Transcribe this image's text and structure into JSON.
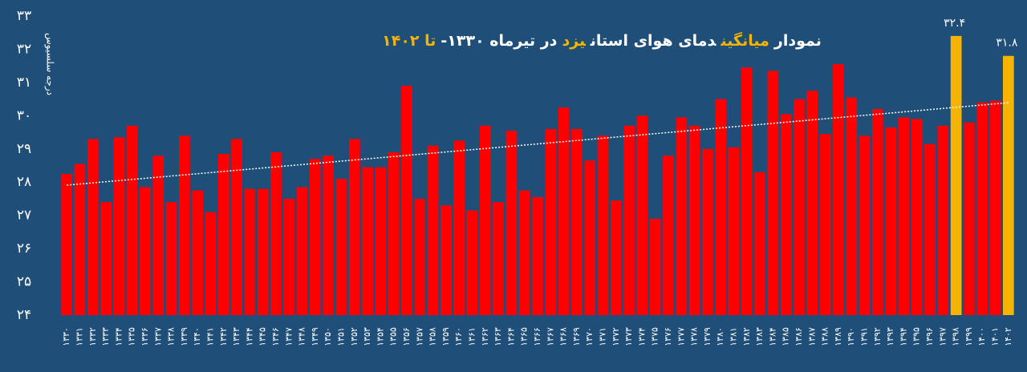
{
  "chart_data": {
    "type": "bar",
    "title_parts": [
      {
        "text": "نمودار",
        "color": "#ffffff"
      },
      {
        "text": "میانگین",
        "color": "#f5b400"
      },
      {
        "text": "دمای هوای استان",
        "color": "#ffffff"
      },
      {
        "text": "یزد",
        "color": "#f5b400"
      },
      {
        "text": "در تیرماه ۱۳۳۰-",
        "color": "#ffffff"
      },
      {
        "text": "تا ۱۴۰۲",
        "color": "#f5b400"
      }
    ],
    "y_label": "درجه سلسیوس",
    "categories": [
      "۱۳۳۰",
      "۱۳۳۱",
      "۱۳۳۲",
      "۱۳۳۳",
      "۱۳۳۴",
      "۱۳۳۵",
      "۱۳۳۶",
      "۱۳۳۷",
      "۱۳۳۸",
      "۱۳۳۹",
      "۱۳۴۰",
      "۱۳۴۱",
      "۱۳۴۲",
      "۱۳۴۳",
      "۱۳۴۴",
      "۱۳۴۵",
      "۱۳۴۶",
      "۱۳۴۷",
      "۱۳۴۸",
      "۱۳۴۹",
      "۱۳۵۰",
      "۱۳۵۱",
      "۱۳۵۲",
      "۱۳۵۳",
      "۱۳۵۴",
      "۱۳۵۵",
      "۱۳۵۶",
      "۱۳۵۷",
      "۱۳۵۸",
      "۱۳۵۹",
      "۱۳۶۰",
      "۱۳۶۱",
      "۱۳۶۲",
      "۱۳۶۳",
      "۱۳۶۴",
      "۱۳۶۵",
      "۱۳۶۶",
      "۱۳۶۷",
      "۱۳۶۸",
      "۱۳۶۹",
      "۱۳۷۰",
      "۱۳۷۱",
      "۱۳۷۲",
      "۱۳۷۳",
      "۱۳۷۴",
      "۱۳۷۵",
      "۱۳۷۶",
      "۱۳۷۷",
      "۱۳۷۸",
      "۱۳۷۹",
      "۱۳۸۰",
      "۱۳۸۱",
      "۱۳۸۲",
      "۱۳۸۳",
      "۱۳۸۴",
      "۱۳۸۵",
      "۱۳۸۶",
      "۱۳۸۷",
      "۱۳۸۸",
      "۱۳۸۹",
      "۱۳۹۰",
      "۱۳۹۱",
      "۱۳۹۲",
      "۱۳۹۳",
      "۱۳۹۴",
      "۱۳۹۵",
      "۱۳۹۶",
      "۱۳۹۷",
      "۱۳۹۸",
      "۱۳۹۹",
      "۱۴۰۰",
      "۱۴۰۱",
      "۱۴۰۲"
    ],
    "values": [
      28.25,
      28.55,
      29.3,
      27.4,
      29.35,
      29.7,
      27.85,
      28.8,
      27.4,
      29.4,
      27.75,
      27.1,
      28.85,
      29.3,
      27.8,
      27.8,
      28.9,
      27.5,
      27.85,
      28.7,
      28.8,
      28.1,
      29.3,
      28.45,
      28.45,
      28.9,
      30.9,
      27.5,
      29.1,
      27.3,
      29.25,
      27.15,
      29.7,
      27.4,
      29.55,
      27.75,
      27.55,
      29.6,
      30.25,
      29.6,
      28.65,
      29.4,
      27.45,
      29.7,
      30.0,
      26.9,
      28.8,
      29.95,
      29.7,
      29.0,
      30.5,
      29.05,
      31.45,
      28.3,
      31.35,
      30.05,
      30.5,
      30.75,
      29.45,
      31.55,
      30.55,
      29.4,
      30.2,
      29.65,
      29.95,
      29.9,
      29.15,
      29.7,
      32.4,
      29.8,
      30.4,
      30.45,
      31.8
    ],
    "value_labels": [
      null,
      null,
      null,
      null,
      null,
      null,
      null,
      null,
      null,
      null,
      null,
      null,
      null,
      null,
      null,
      null,
      null,
      null,
      null,
      null,
      null,
      null,
      null,
      null,
      null,
      null,
      null,
      null,
      null,
      null,
      null,
      null,
      null,
      null,
      null,
      null,
      null,
      null,
      null,
      null,
      null,
      null,
      null,
      null,
      null,
      null,
      null,
      null,
      null,
      null,
      null,
      null,
      null,
      null,
      null,
      null,
      null,
      null,
      null,
      null,
      null,
      null,
      null,
      null,
      null,
      null,
      null,
      null,
      "۳۲.۴",
      null,
      null,
      null,
      "۳۱.۸"
    ],
    "color": "#ff0000",
    "highlight_color": "#f5b400",
    "trend_line": true,
    "ylim": [
      24,
      33
    ],
    "yticks": [
      {
        "value": 24,
        "label": "۲۴"
      },
      {
        "value": 25,
        "label": "۲۵"
      },
      {
        "value": 26,
        "label": "۲۶"
      },
      {
        "value": 27,
        "label": "۲۷"
      },
      {
        "value": 28,
        "label": "۲۸"
      },
      {
        "value": 29,
        "label": "۲۹"
      },
      {
        "value": 30,
        "label": "۳۰"
      },
      {
        "value": 31,
        "label": "۳۱"
      },
      {
        "value": 32,
        "label": "۳۲"
      },
      {
        "value": 33,
        "label": "۳۳"
      }
    ]
  }
}
